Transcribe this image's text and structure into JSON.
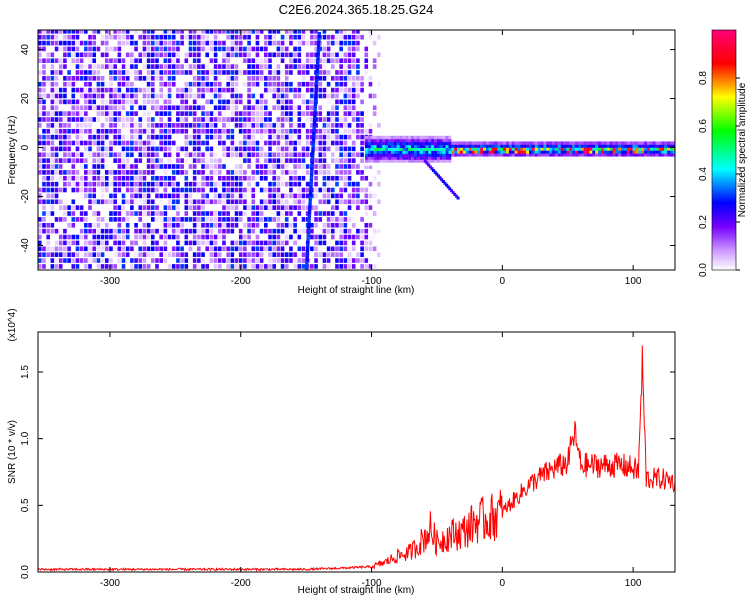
{
  "figure": {
    "title": "C2E6.2024.365.18.25.G24"
  },
  "chart_data": [
    {
      "type": "heatmap",
      "xlabel": "Height of straight line (km)",
      "ylabel": "Frequency (Hz)",
      "xlim": [
        -355,
        132
      ],
      "ylim": [
        -50,
        48
      ],
      "xticks": [
        -300,
        -200,
        -100,
        0,
        100
      ],
      "yticks": [
        -40,
        -20,
        0,
        20,
        40
      ],
      "colorbar": {
        "label": "Normalized spectral amplitude",
        "range": [
          0.0,
          1.0
        ],
        "ticks": [
          0.0,
          0.2,
          0.4,
          0.6,
          0.8
        ],
        "colormap": [
          "#ffffff",
          "#7700ff",
          "#0000ff",
          "#00ffff",
          "#00ff00",
          "#ffff00",
          "#ff0000",
          "#ff00aa"
        ]
      },
      "features": [
        {
          "description": "broadband noise at most frequencies",
          "x_range": [
            -355,
            -100
          ]
        },
        {
          "description": "near-vertical streak",
          "x_range": [
            -150,
            -140
          ],
          "y_range": [
            -50,
            48
          ]
        },
        {
          "description": "main narrowband signal",
          "x_range": [
            -105,
            132
          ],
          "y_center": 0,
          "peak_amplitude": 1.0
        },
        {
          "description": "short descending branch",
          "x_range": [
            -60,
            -35
          ],
          "y_range": [
            -20,
            -5
          ]
        }
      ]
    },
    {
      "type": "line",
      "xlabel": "Height of straight line (km)",
      "ylabel": "SNR (10 * v/v)",
      "y_multiplier": "(x10^4)",
      "xlim": [
        -355,
        132
      ],
      "ylim": [
        0,
        1.8
      ],
      "xticks": [
        -300,
        -200,
        -100,
        0,
        100
      ],
      "yticks": [
        0.0,
        0.5,
        1.0,
        1.5
      ],
      "series": [
        {
          "color": "#ff0000",
          "x": [
            -355,
            -300,
            -250,
            -200,
            -150,
            -120,
            -100,
            -90,
            -80,
            -70,
            -60,
            -55,
            -50,
            -40,
            -30,
            -20,
            -10,
            0,
            10,
            20,
            30,
            40,
            50,
            55,
            60,
            70,
            80,
            90,
            100,
            104,
            107,
            110,
            120,
            132
          ],
          "y": [
            0.02,
            0.02,
            0.02,
            0.02,
            0.02,
            0.03,
            0.04,
            0.07,
            0.12,
            0.15,
            0.25,
            0.32,
            0.22,
            0.28,
            0.3,
            0.38,
            0.4,
            0.45,
            0.55,
            0.65,
            0.72,
            0.78,
            0.82,
            1.05,
            0.8,
            0.8,
            0.8,
            0.8,
            0.78,
            0.75,
            1.55,
            0.7,
            0.7,
            0.68
          ]
        }
      ]
    }
  ]
}
